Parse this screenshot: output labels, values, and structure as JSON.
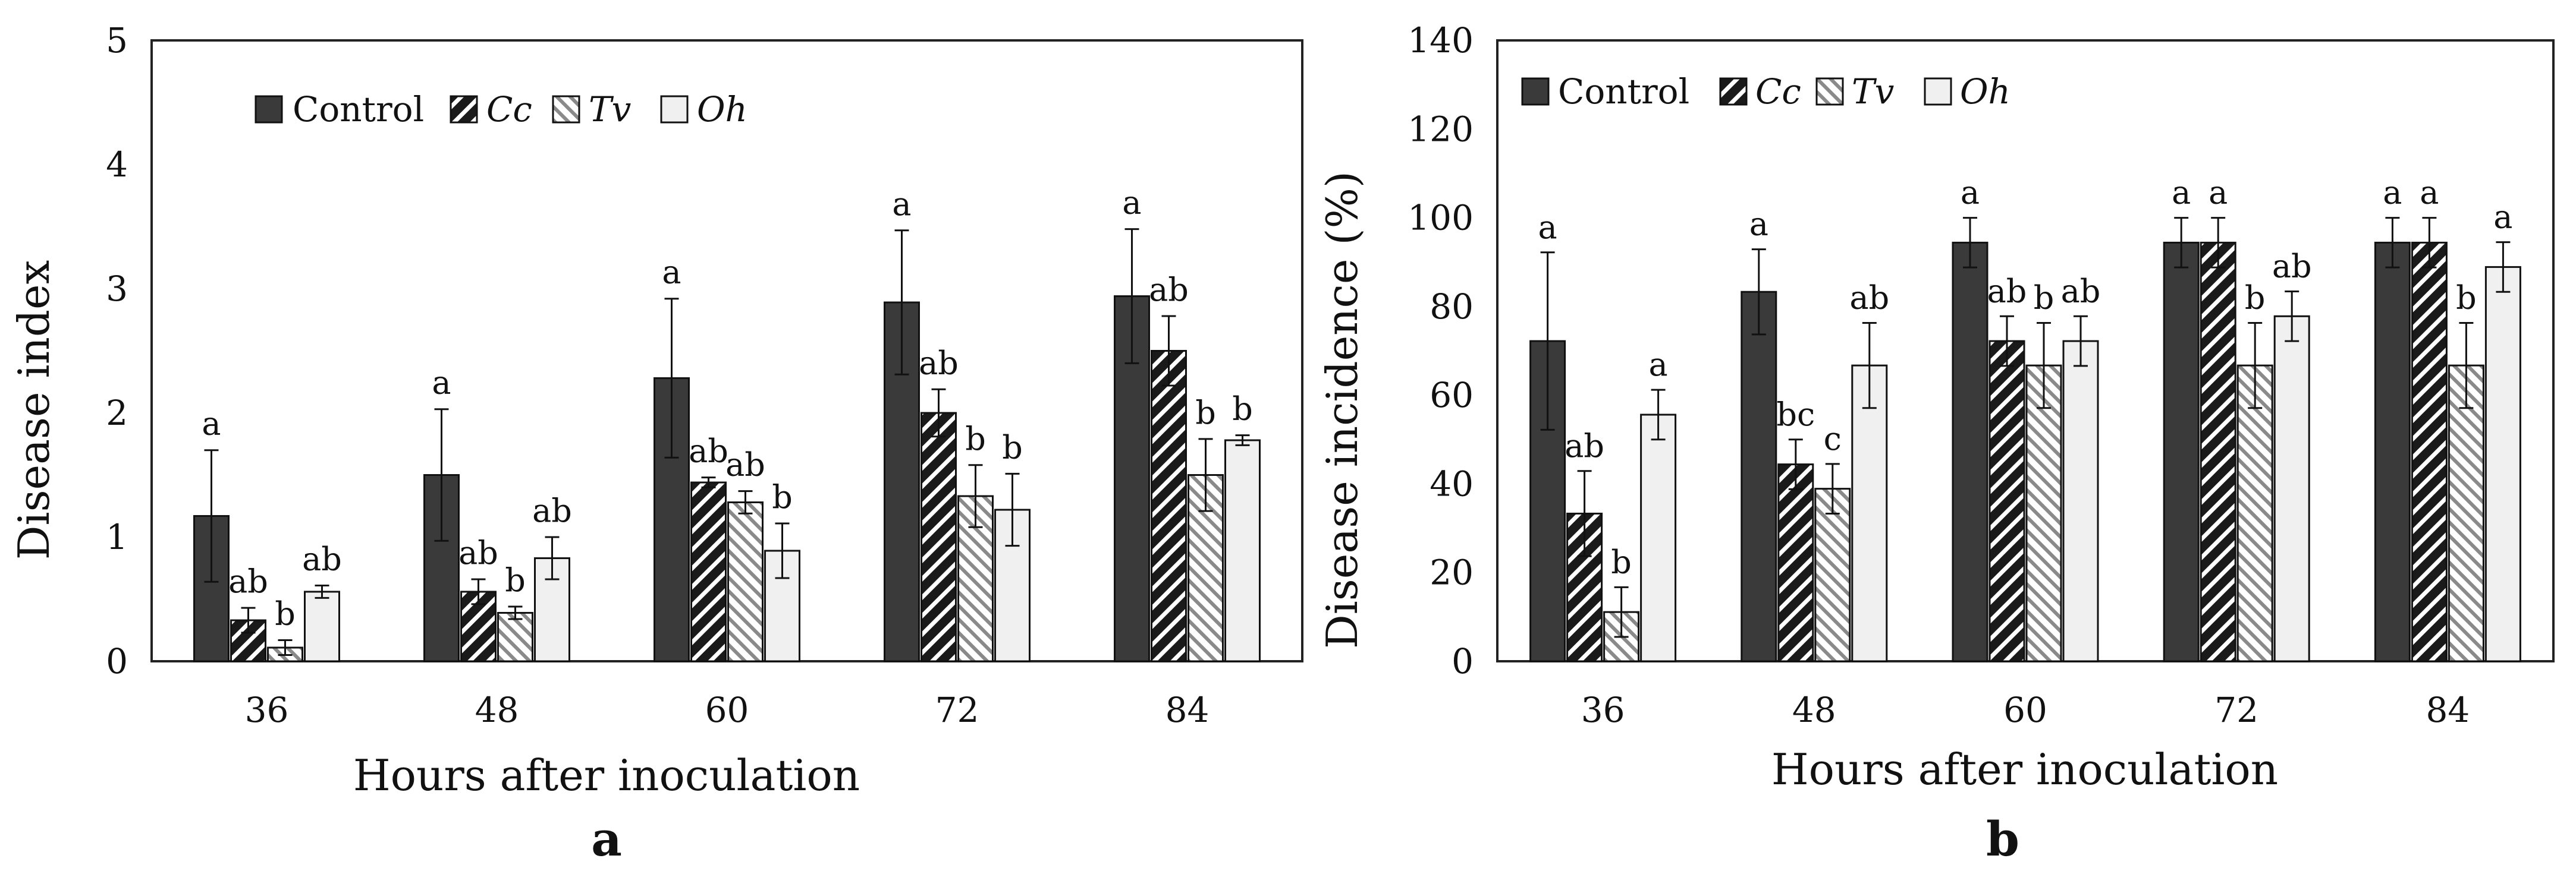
{
  "colors": {
    "control": "#3a3a3a",
    "cc_fill": "#1a1a1a",
    "tv_fill": "#b5b5b5",
    "oh_fill": "#f0f0f0",
    "axis": "#222222"
  },
  "legend": [
    {
      "key": "control",
      "label": "Control",
      "italic": false
    },
    {
      "key": "cc",
      "label": "Cc",
      "italic": true
    },
    {
      "key": "tv",
      "label": "Tv",
      "italic": true
    },
    {
      "key": "oh",
      "label": "Oh",
      "italic": true
    }
  ],
  "chart_data": [
    {
      "type": "bar",
      "panel_label": "a",
      "title": "",
      "xlabel": "Hours after inoculation",
      "ylabel": "Disease index",
      "categories": [
        "36",
        "48",
        "60",
        "72",
        "84"
      ],
      "ylim": [
        0,
        5
      ],
      "yticks": [
        "0",
        "1",
        "2",
        "3",
        "4",
        "5"
      ],
      "grid": false,
      "legend_position": "top-left inside",
      "series": [
        {
          "name": "Control",
          "values": [
            1.17,
            1.5,
            2.28,
            2.89,
            2.94
          ],
          "errors": [
            0.53,
            0.53,
            0.64,
            0.58,
            0.54
          ],
          "letters": [
            "a",
            "a",
            "a",
            "a",
            "a"
          ]
        },
        {
          "name": "Cc",
          "values": [
            0.33,
            0.56,
            1.44,
            2.0,
            2.5
          ],
          "errors": [
            0.1,
            0.1,
            0.04,
            0.19,
            0.28
          ],
          "letters": [
            "ab",
            "ab",
            "ab",
            "ab",
            "ab"
          ]
        },
        {
          "name": "Tv",
          "values": [
            0.11,
            0.39,
            1.28,
            1.33,
            1.5
          ],
          "errors": [
            0.06,
            0.05,
            0.09,
            0.25,
            0.29
          ],
          "letters": [
            "b",
            "b",
            "ab",
            "b",
            "b"
          ]
        },
        {
          "name": "Oh",
          "values": [
            0.56,
            0.83,
            0.89,
            1.22,
            1.78
          ],
          "errors": [
            0.05,
            0.17,
            0.22,
            0.29,
            0.04
          ],
          "letters": [
            "ab",
            "ab",
            "b",
            "b",
            "b"
          ]
        }
      ]
    },
    {
      "type": "bar",
      "panel_label": "b",
      "title": "",
      "xlabel": "Hours after inoculation",
      "ylabel": "Disease incidence (%)",
      "categories": [
        "36",
        "48",
        "60",
        "72",
        "84"
      ],
      "ylim": [
        0,
        140
      ],
      "yticks": [
        "0",
        "20",
        "40",
        "60",
        "80",
        "100",
        "120",
        "140"
      ],
      "grid": false,
      "legend_position": "top-left inside",
      "series": [
        {
          "name": "Control",
          "values": [
            72.2,
            83.3,
            94.4,
            94.4,
            94.4
          ],
          "errors": [
            20.0,
            9.6,
            5.6,
            5.6,
            5.6
          ],
          "letters": [
            "a",
            "a",
            "a",
            "a",
            "a"
          ]
        },
        {
          "name": "Cc",
          "values": [
            33.3,
            44.4,
            72.2,
            94.4,
            94.4
          ],
          "errors": [
            9.6,
            5.6,
            5.6,
            5.6,
            5.6
          ],
          "letters": [
            "ab",
            "bc",
            "ab",
            "a",
            "a"
          ]
        },
        {
          "name": "Tv",
          "values": [
            11.1,
            38.9,
            66.7,
            66.7,
            66.7
          ],
          "errors": [
            5.6,
            5.6,
            9.6,
            9.6,
            9.6
          ],
          "letters": [
            "b",
            "c",
            "b",
            "b",
            "b"
          ]
        },
        {
          "name": "Oh",
          "values": [
            55.6,
            66.7,
            72.2,
            77.8,
            88.9
          ],
          "errors": [
            5.6,
            9.6,
            5.6,
            5.6,
            5.6
          ],
          "letters": [
            "a",
            "ab",
            "ab",
            "ab",
            "a"
          ]
        }
      ]
    }
  ]
}
